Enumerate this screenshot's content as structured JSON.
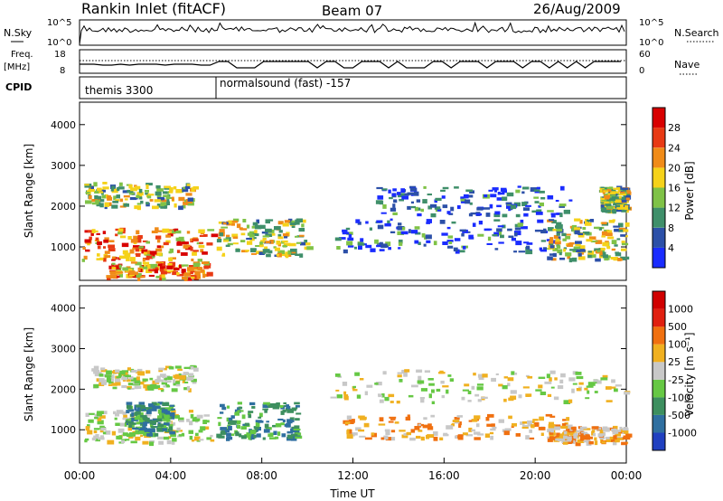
{
  "header": {
    "station": "Rankin Inlet (fitACF)",
    "beam": "Beam 07",
    "date": "26/Aug/2009"
  },
  "summary_panels": {
    "nsky": {
      "label": "N.Sky",
      "right_label": "N.Search",
      "ticks": [
        "10^5",
        "10^0"
      ],
      "right_ticks": [
        "10^5",
        "10^0"
      ]
    },
    "freq": {
      "label": "Freq.",
      "unit": "[MHz]",
      "right_label": "Nave",
      "ticks": [
        "18",
        "8"
      ],
      "right_ticks": [
        "60",
        "0"
      ]
    },
    "cpid": {
      "label": "CPID",
      "segments": [
        {
          "text": "themis 3300",
          "start_hour": 0
        },
        {
          "text": "normalsound (fast) -157",
          "start_hour": 6
        }
      ]
    }
  },
  "chart_data": [
    {
      "type": "heatmap",
      "name": "power",
      "xlabel": "",
      "ylabel": "Slant Range [km]",
      "yticks": [
        1000,
        2000,
        3000,
        4000
      ],
      "ylim": [
        180,
        4550
      ],
      "xlim": [
        0,
        24
      ],
      "colorbar": {
        "label": "Power [dB]",
        "ticks": [
          "4",
          "8",
          "12",
          "16",
          "20",
          "24",
          "28"
        ],
        "colors": [
          "#1a2cff",
          "#2c50a8",
          "#3f8f6a",
          "#7fc247",
          "#f5d21a",
          "#f08b18",
          "#e83a14",
          "#d80000"
        ]
      },
      "echo_regions": [
        {
          "t0": 0.1,
          "t1": 5.8,
          "r0": 700,
          "r1": 1500,
          "level": "high"
        },
        {
          "t0": 0.2,
          "t1": 5.0,
          "r0": 2000,
          "r1": 2600,
          "level": "mid"
        },
        {
          "t0": 1.0,
          "t1": 5.6,
          "r0": 250,
          "r1": 650,
          "level": "high"
        },
        {
          "t0": 6.0,
          "t1": 10.0,
          "r0": 800,
          "r1": 1700,
          "level": "mid"
        },
        {
          "t0": 11.0,
          "t1": 21.0,
          "r0": 900,
          "r1": 1700,
          "level": "low"
        },
        {
          "t0": 13.0,
          "t1": 21.5,
          "r0": 1800,
          "r1": 2500,
          "level": "low"
        },
        {
          "t0": 20.5,
          "t1": 24.0,
          "r0": 700,
          "r1": 1700,
          "level": "mid"
        },
        {
          "t0": 22.8,
          "t1": 24.0,
          "r0": 1900,
          "r1": 2500,
          "level": "mid"
        }
      ]
    },
    {
      "type": "heatmap",
      "name": "velocity",
      "xlabel": "Time UT",
      "ylabel": "Slant Range [km]",
      "xticks": [
        "00:00",
        "04:00",
        "08:00",
        "12:00",
        "16:00",
        "20:00",
        "00:00"
      ],
      "yticks": [
        1000,
        2000,
        3000,
        4000
      ],
      "ylim": [
        180,
        4550
      ],
      "xlim": [
        0,
        24
      ],
      "colorbar": {
        "label": "Velocity [m s⁻¹]",
        "ticks": [
          "1000",
          "500",
          "100",
          "25",
          "-25",
          "-100",
          "-500",
          "-1000"
        ],
        "colors": [
          "#2040c0",
          "#2f6fa0",
          "#3d8f5f",
          "#66c844",
          "#c8c8c8",
          "#f0b020",
          "#f07010",
          "#e02010",
          "#d00000"
        ]
      },
      "echo_regions": [
        {
          "t0": 0.1,
          "t1": 5.8,
          "r0": 700,
          "r1": 1500,
          "level": "mid"
        },
        {
          "t0": 0.5,
          "t1": 5.0,
          "r0": 2000,
          "r1": 2600,
          "level": "mid"
        },
        {
          "t0": 2.0,
          "t1": 4.0,
          "r0": 900,
          "r1": 1700,
          "level": "low"
        },
        {
          "t0": 6.0,
          "t1": 9.5,
          "r0": 800,
          "r1": 1700,
          "level": "low"
        },
        {
          "t0": 11.5,
          "t1": 21.5,
          "r0": 800,
          "r1": 1400,
          "level": "high"
        },
        {
          "t0": 11.0,
          "t1": 24.0,
          "r0": 1700,
          "r1": 2500,
          "level": "mid"
        },
        {
          "t0": 20.5,
          "t1": 24.0,
          "r0": 700,
          "r1": 1100,
          "level": "high"
        }
      ]
    }
  ]
}
